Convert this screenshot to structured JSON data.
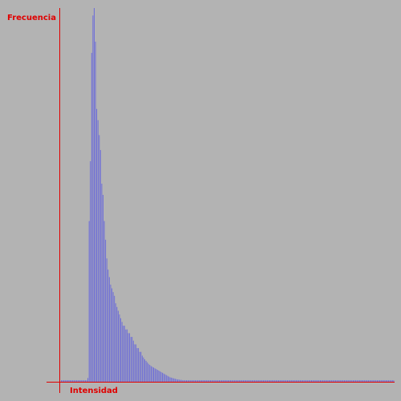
{
  "colors": {
    "background": "#b3b3b3",
    "axis": "#e00000",
    "bars": "#6b6bd9",
    "label": "#e00000"
  },
  "chart_data": {
    "type": "bar",
    "title": "",
    "ylabel": "Frecuencia",
    "xlabel": "Intensidad",
    "grid": false,
    "legend": "none",
    "x_range": [
      0,
      255
    ],
    "ylim": [
      0,
      1
    ],
    "x_start": 0,
    "values": [
      0.004,
      0.004,
      0.004,
      0.004,
      0.004,
      0.004,
      0.004,
      0.004,
      0.004,
      0.004,
      0.004,
      0.004,
      0.004,
      0.004,
      0.004,
      0.004,
      0.004,
      0.004,
      0.004,
      0.004,
      0.004,
      0.01,
      0.43,
      0.59,
      0.88,
      0.98,
      1.0,
      0.91,
      0.73,
      0.7,
      0.66,
      0.62,
      0.53,
      0.5,
      0.43,
      0.38,
      0.33,
      0.3,
      0.28,
      0.26,
      0.25,
      0.24,
      0.23,
      0.21,
      0.2,
      0.19,
      0.18,
      0.17,
      0.16,
      0.15,
      0.15,
      0.14,
      0.14,
      0.13,
      0.13,
      0.12,
      0.12,
      0.11,
      0.1,
      0.1,
      0.09,
      0.09,
      0.08,
      0.08,
      0.07,
      0.065,
      0.06,
      0.056,
      0.052,
      0.048,
      0.045,
      0.042,
      0.04,
      0.038,
      0.036,
      0.034,
      0.032,
      0.03,
      0.028,
      0.026,
      0.024,
      0.022,
      0.02,
      0.018,
      0.016,
      0.014,
      0.012,
      0.011,
      0.01,
      0.009,
      0.008,
      0.007,
      0.006,
      0.006,
      0.005,
      0.005,
      0.004,
      0.004,
      0.004,
      0.004,
      0.004,
      0.004,
      0.004,
      0.004,
      0.004,
      0.004,
      0.004,
      0.004,
      0.004,
      0.004,
      0.004,
      0.004,
      0.004,
      0.004,
      0.004,
      0.004,
      0.004,
      0.004,
      0.004,
      0.004,
      0.004,
      0.004,
      0.004,
      0.004,
      0.004,
      0.004,
      0.004,
      0.004,
      0.004,
      0.004,
      0.004,
      0.004,
      0.004,
      0.004,
      0.004,
      0.004,
      0.004,
      0.004,
      0.004,
      0.004,
      0.004,
      0.004,
      0.004,
      0.004,
      0.004,
      0.004,
      0.004,
      0.004,
      0.004,
      0.004,
      0.004,
      0.004,
      0.004,
      0.004,
      0.004,
      0.004,
      0.004,
      0.004,
      0.004,
      0.004,
      0.004,
      0.004,
      0.004,
      0.004,
      0.004,
      0.004,
      0.004,
      0.004,
      0.004,
      0.004,
      0.004,
      0.004,
      0.004,
      0.004,
      0.004,
      0.004,
      0.004,
      0.004,
      0.004,
      0.004,
      0.004,
      0.004,
      0.004,
      0.004,
      0.004,
      0.004,
      0.004,
      0.004,
      0.004,
      0.004,
      0.004,
      0.004,
      0.004,
      0.004,
      0.004,
      0.004,
      0.004,
      0.004,
      0.004,
      0.004,
      0.004,
      0.004,
      0.004,
      0.004,
      0.004,
      0.004,
      0.004,
      0.004,
      0.004,
      0.004,
      0.004,
      0.004,
      0.004,
      0.004,
      0.004,
      0.004,
      0.004,
      0.004,
      0.004,
      0.004,
      0.004,
      0.004,
      0.004,
      0.004,
      0.004,
      0.004,
      0.004,
      0.004,
      0.004,
      0.004,
      0.004,
      0.004,
      0.004,
      0.004,
      0.004,
      0.004,
      0.004,
      0.004,
      0.004,
      0.004,
      0.004,
      0.004,
      0.004,
      0.004,
      0.004,
      0.004,
      0.004,
      0.004,
      0.004,
      0.004,
      0.004,
      0.004,
      0.004,
      0.004,
      0.004,
      0.004,
      0.004,
      0.004,
      0.004,
      0.004,
      0.004,
      0.004,
      0.004,
      0.004
    ]
  }
}
